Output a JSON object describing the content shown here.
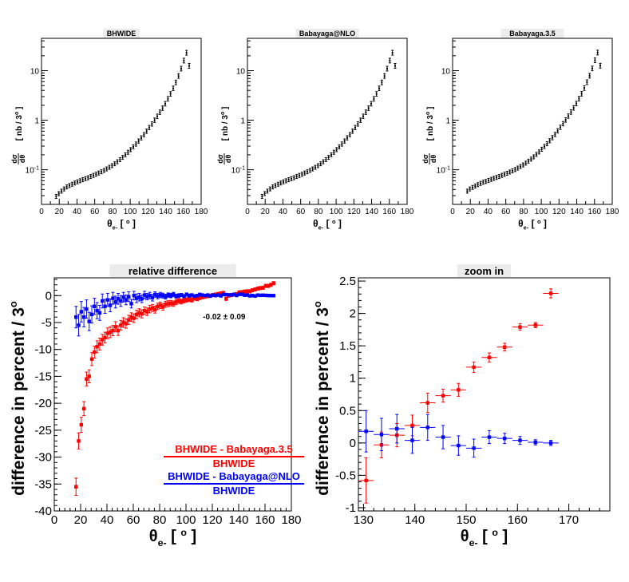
{
  "chart_data": [
    {
      "id": "bhwide",
      "type": "scatter",
      "title": "BHWIDE",
      "xlabel": "θe- [ o ]",
      "ylabel": "dσ/dθ [ nb / 3o ]",
      "yscale": "log",
      "xlim": [
        0,
        180
      ],
      "ylim": [
        0.02,
        45
      ],
      "xticks": [
        "0",
        "20",
        "40",
        "60",
        "80",
        "100",
        "120",
        "140",
        "160",
        "180"
      ],
      "yticks": [
        "10-1",
        "1",
        "10"
      ],
      "x": [
        16.5,
        19.5,
        22.5,
        25.5,
        28.5,
        31.5,
        34.5,
        37.5,
        40.5,
        43.5,
        46.5,
        49.5,
        52.5,
        55.5,
        58.5,
        61.5,
        64.5,
        67.5,
        70.5,
        73.5,
        76.5,
        79.5,
        82.5,
        85.5,
        88.5,
        91.5,
        94.5,
        97.5,
        100.5,
        103.5,
        106.5,
        109.5,
        112.5,
        115.5,
        118.5,
        121.5,
        124.5,
        127.5,
        130.5,
        133.5,
        136.5,
        139.5,
        142.5,
        145.5,
        148.5,
        151.5,
        154.5,
        157.5,
        160.5,
        163.5,
        166.5
      ],
      "y": [
        0.029,
        0.033,
        0.037,
        0.041,
        0.045,
        0.048,
        0.051,
        0.054,
        0.057,
        0.06,
        0.063,
        0.066,
        0.069,
        0.073,
        0.077,
        0.081,
        0.086,
        0.091,
        0.097,
        0.104,
        0.112,
        0.121,
        0.132,
        0.145,
        0.16,
        0.178,
        0.2,
        0.225,
        0.255,
        0.29,
        0.33,
        0.38,
        0.44,
        0.51,
        0.6,
        0.71,
        0.84,
        1.0,
        1.2,
        1.45,
        1.75,
        2.15,
        2.7,
        3.4,
        4.4,
        5.8,
        7.8,
        11,
        16,
        23,
        12.5
      ]
    },
    {
      "id": "nlo",
      "type": "scatter",
      "title": "Babayaga@NLO",
      "xlabel": "θe- [ o ]",
      "ylabel": "dσ/dθ [ nb / 3o ]",
      "yscale": "log",
      "xlim": [
        0,
        180
      ],
      "ylim": [
        0.02,
        45
      ],
      "xticks": [
        "0",
        "20",
        "40",
        "60",
        "80",
        "100",
        "120",
        "140",
        "160",
        "180"
      ],
      "yticks": [
        "10-1",
        "1",
        "10"
      ],
      "x": [
        16.5,
        19.5,
        22.5,
        25.5,
        28.5,
        31.5,
        34.5,
        37.5,
        40.5,
        43.5,
        46.5,
        49.5,
        52.5,
        55.5,
        58.5,
        61.5,
        64.5,
        67.5,
        70.5,
        73.5,
        76.5,
        79.5,
        82.5,
        85.5,
        88.5,
        91.5,
        94.5,
        97.5,
        100.5,
        103.5,
        106.5,
        109.5,
        112.5,
        115.5,
        118.5,
        121.5,
        124.5,
        127.5,
        130.5,
        133.5,
        136.5,
        139.5,
        142.5,
        145.5,
        148.5,
        151.5,
        154.5,
        157.5,
        160.5,
        163.5,
        166.5
      ],
      "y": [
        0.029,
        0.033,
        0.037,
        0.041,
        0.045,
        0.048,
        0.051,
        0.054,
        0.057,
        0.06,
        0.063,
        0.066,
        0.069,
        0.073,
        0.077,
        0.081,
        0.086,
        0.091,
        0.097,
        0.104,
        0.112,
        0.121,
        0.132,
        0.145,
        0.16,
        0.178,
        0.2,
        0.225,
        0.255,
        0.29,
        0.33,
        0.38,
        0.44,
        0.51,
        0.6,
        0.71,
        0.84,
        1.0,
        1.2,
        1.45,
        1.75,
        2.15,
        2.7,
        3.4,
        4.4,
        5.8,
        7.8,
        11,
        16,
        23,
        12.5
      ]
    },
    {
      "id": "b35",
      "type": "scatter",
      "title": "Babayaga.3.5",
      "xlabel": "θe- [ o ]",
      "ylabel": "dσ/dθ [ nb / 3o ]",
      "yscale": "log",
      "xlim": [
        0,
        180
      ],
      "ylim": [
        0.02,
        45
      ],
      "xticks": [
        "0",
        "20",
        "40",
        "60",
        "80",
        "100",
        "120",
        "140",
        "160",
        "180"
      ],
      "yticks": [
        "10-1",
        "1",
        "10"
      ],
      "x": [
        16.5,
        19.5,
        22.5,
        25.5,
        28.5,
        31.5,
        34.5,
        37.5,
        40.5,
        43.5,
        46.5,
        49.5,
        52.5,
        55.5,
        58.5,
        61.5,
        64.5,
        67.5,
        70.5,
        73.5,
        76.5,
        79.5,
        82.5,
        85.5,
        88.5,
        91.5,
        94.5,
        97.5,
        100.5,
        103.5,
        106.5,
        109.5,
        112.5,
        115.5,
        118.5,
        121.5,
        124.5,
        127.5,
        130.5,
        133.5,
        136.5,
        139.5,
        142.5,
        145.5,
        148.5,
        151.5,
        154.5,
        157.5,
        160.5,
        163.5,
        166.5
      ],
      "y": [
        0.037,
        0.041,
        0.044,
        0.047,
        0.05,
        0.053,
        0.056,
        0.058,
        0.061,
        0.064,
        0.067,
        0.07,
        0.073,
        0.077,
        0.081,
        0.085,
        0.09,
        0.095,
        0.101,
        0.108,
        0.116,
        0.125,
        0.136,
        0.149,
        0.164,
        0.182,
        0.204,
        0.229,
        0.26,
        0.295,
        0.335,
        0.385,
        0.445,
        0.515,
        0.61,
        0.72,
        0.85,
        1.01,
        1.21,
        1.46,
        1.77,
        2.17,
        2.72,
        3.42,
        4.45,
        5.85,
        7.9,
        11.1,
        16.2,
        23.2,
        12.6
      ]
    },
    {
      "id": "reldiff",
      "type": "scatter",
      "title": "relative difference",
      "xlabel": "θe- [ o ]",
      "ylabel": "difference in percent / 3o",
      "xlim": [
        0,
        180
      ],
      "ylim": [
        -40,
        3.3
      ],
      "xticks": [
        "0",
        "20",
        "40",
        "60",
        "80",
        "100",
        "120",
        "140",
        "160",
        "180"
      ],
      "yticks": [
        "-40",
        "-35",
        "-30",
        "-25",
        "-20",
        "-15",
        "-10",
        "-5",
        "0"
      ],
      "annotation": "-0.02 ± 0.09",
      "legend": {
        "position": "bottom-right",
        "entries": [
          {
            "numerator": "BHWIDE - Babayaga.3.5",
            "denominator": "BHWIDE",
            "color": "#ff0000"
          },
          {
            "numerator": "BHWIDE - Babayaga@NLO",
            "denominator": "BHWIDE",
            "color": "#0000ff"
          }
        ]
      },
      "series": [
        {
          "name": "BHWIDE - Babayaga.3.5",
          "color": "#ff0000",
          "x": [
            16.5,
            18.5,
            20.5,
            22.5,
            24.5,
            26.5,
            28.5,
            30.5,
            32.5,
            34.5,
            36.5,
            38.5,
            40.5,
            42.5,
            44.5,
            46.5,
            48.5,
            50.5,
            52.5,
            54.5,
            56.5,
            58.5,
            60.5,
            62.5,
            64.5,
            66.5,
            68.5,
            70.5,
            72.5,
            74.5,
            76.5,
            78.5,
            80.5,
            82.5,
            84.5,
            86.5,
            88.5,
            90.5,
            92.5,
            94.5,
            96.5,
            98.5,
            100.5,
            102.5,
            104.5,
            106.5,
            108.5,
            110.5,
            112.5,
            114.5,
            116.5,
            118.5,
            120.5,
            122.5,
            124.5,
            126.5,
            128.5,
            130.5,
            132.5,
            134.5,
            136.5,
            138.5,
            140.5,
            142.5,
            144.5,
            146.5,
            148.5,
            150.5,
            152.5,
            154.5,
            156.5,
            158.5,
            160.5,
            162.5,
            164.5,
            166.5
          ],
          "y": [
            -35.5,
            -27,
            -24,
            -21,
            -15.5,
            -15,
            -11.8,
            -10.5,
            -9.5,
            -9,
            -8.2,
            -7.8,
            -7,
            -6.8,
            -6.5,
            -5.8,
            -6.5,
            -5.5,
            -5,
            -5.2,
            -4.5,
            -4,
            -4.2,
            -3.5,
            -3.2,
            -3.4,
            -2.8,
            -3,
            -2.5,
            -2.3,
            -2.6,
            -2,
            -1.8,
            -2.1,
            -1.6,
            -1.5,
            -1.4,
            -1.5,
            -1.2,
            -1,
            -1.1,
            -0.9,
            -0.8,
            -0.7,
            -0.8,
            -0.5,
            -0.6,
            -0.4,
            -0.3,
            -0.2,
            -0.1,
            0,
            0.1,
            0.2,
            0.3,
            0.4,
            0.5,
            -0.6,
            0,
            0.1,
            0.2,
            0.3,
            0.6,
            0.65,
            0.75,
            0.8,
            0.8,
            1.0,
            1.15,
            1.3,
            1.4,
            1.45,
            1.8,
            1.8,
            2.0,
            2.3
          ],
          "err": [
            1.6,
            1.5,
            1.4,
            1.3,
            1.3,
            1.2,
            1.2,
            1.1,
            1.1,
            1.1,
            1.0,
            1.0,
            1.0,
            1.0,
            0.95,
            0.95,
            0.9,
            0.9,
            0.9,
            0.85,
            0.85,
            0.8,
            0.8,
            0.8,
            0.75,
            0.75,
            0.7,
            0.7,
            0.7,
            0.65,
            0.65,
            0.6,
            0.6,
            0.6,
            0.55,
            0.55,
            0.5,
            0.5,
            0.5,
            0.45,
            0.45,
            0.45,
            0.4,
            0.4,
            0.4,
            0.35,
            0.35,
            0.35,
            0.3,
            0.3,
            0.3,
            0.3,
            0.3,
            0.3,
            0.3,
            0.3,
            0.3,
            0.3,
            0.3,
            0.3,
            0.3,
            0.3,
            0.3,
            0.3,
            0.3,
            0.3,
            0.3,
            0.3,
            0.3,
            0.3,
            0.3,
            0.3,
            0.3,
            0.3,
            0.3,
            0.3
          ]
        },
        {
          "name": "BHWIDE - Babayaga@NLO",
          "color": "#0000ff",
          "x": [
            16.5,
            18.5,
            20.5,
            22.5,
            24.5,
            26.5,
            28.5,
            30.5,
            32.5,
            34.5,
            36.5,
            38.5,
            40.5,
            42.5,
            44.5,
            46.5,
            48.5,
            50.5,
            52.5,
            54.5,
            56.5,
            58.5,
            60.5,
            62.5,
            64.5,
            66.5,
            68.5,
            70.5,
            72.5,
            74.5,
            76.5,
            78.5,
            80.5,
            82.5,
            84.5,
            86.5,
            88.5,
            90.5,
            92.5,
            94.5,
            96.5,
            98.5,
            100.5,
            102.5,
            104.5,
            106.5,
            108.5,
            110.5,
            112.5,
            114.5,
            116.5,
            118.5,
            120.5,
            122.5,
            124.5,
            126.5,
            128.5,
            130.5,
            132.5,
            134.5,
            136.5,
            138.5,
            140.5,
            142.5,
            144.5,
            146.5,
            148.5,
            150.5,
            152.5,
            154.5,
            156.5,
            158.5,
            160.5,
            162.5,
            164.5,
            166.5
          ],
          "y": [
            -4,
            -5.5,
            -3,
            -4,
            -2.5,
            -4.8,
            -3.5,
            -2,
            -2.8,
            -3.2,
            -1,
            -2,
            -0.8,
            -1.8,
            -0.5,
            -1.2,
            -0.6,
            -1,
            -0.3,
            -0.8,
            -0.2,
            -1.5,
            0,
            -0.5,
            -0.3,
            -0.6,
            0.1,
            -0.2,
            0,
            -0.4,
            0.2,
            -0.1,
            0.1,
            0,
            -0.2,
            0.1,
            0,
            0.2,
            -0.1,
            0,
            0.1,
            -0.1,
            0.2,
            0,
            0.1,
            -0.1,
            0,
            0.2,
            0.1,
            0,
            0.1,
            -0.1,
            0.1,
            0,
            0.1,
            -0.05,
            0.2,
            0.18,
            0.13,
            0.12,
            0.22,
            0.03,
            0.24,
            0.23,
            0.08,
            0.1,
            -0.05,
            0,
            -0.08,
            0.09,
            0.05,
            0.07,
            0.04,
            0.02,
            0,
            -0.01
          ],
          "err": [
            2.0,
            2.0,
            1.9,
            1.8,
            1.7,
            1.7,
            1.6,
            1.5,
            1.5,
            1.4,
            1.3,
            1.3,
            1.2,
            1.2,
            1.1,
            1.1,
            1.0,
            1.0,
            0.9,
            0.9,
            0.9,
            0.8,
            0.8,
            0.8,
            0.7,
            0.7,
            0.7,
            0.6,
            0.6,
            0.6,
            0.5,
            0.5,
            0.5,
            0.45,
            0.45,
            0.4,
            0.4,
            0.4,
            0.35,
            0.35,
            0.3,
            0.3,
            0.3,
            0.3,
            0.25,
            0.25,
            0.25,
            0.25,
            0.2,
            0.2,
            0.2,
            0.2,
            0.2,
            0.2,
            0.2,
            0.2,
            0.2,
            0.2,
            0.2,
            0.2,
            0.2,
            0.2,
            0.2,
            0.2,
            0.2,
            0.2,
            0.2,
            0.2,
            0.2,
            0.2,
            0.2,
            0.2,
            0.2,
            0.2,
            0.2,
            0.2
          ]
        }
      ]
    },
    {
      "id": "zoom",
      "type": "scatter",
      "title": "zoom in",
      "xlabel": "θe- [ o ]",
      "ylabel": "difference in percent / 3o",
      "xlim": [
        129,
        178
      ],
      "ylim": [
        -1.05,
        2.55
      ],
      "xticks": [
        "130",
        "140",
        "150",
        "160",
        "170"
      ],
      "yticks": [
        "-1",
        "-0.5",
        "0",
        "0.5",
        "1",
        "1.5",
        "2",
        "2.5"
      ],
      "series": [
        {
          "name": "BHWIDE - Babayaga.3.5",
          "color": "#ff0000",
          "x": [
            130.5,
            133.5,
            136.5,
            139.5,
            142.5,
            145.5,
            148.5,
            151.5,
            154.5,
            157.5,
            160.5,
            163.5,
            166.5
          ],
          "y": [
            -0.58,
            -0.03,
            0.12,
            0.27,
            0.62,
            0.73,
            0.82,
            1.17,
            1.32,
            1.48,
            1.79,
            1.82,
            2.31
          ],
          "err": [
            0.35,
            0.2,
            0.18,
            0.16,
            0.15,
            0.1,
            0.1,
            0.08,
            0.07,
            0.06,
            0.05,
            0.04,
            0.07
          ]
        },
        {
          "name": "BHWIDE - Babayaga@NLO",
          "color": "#0000ff",
          "x": [
            130.5,
            133.5,
            136.5,
            139.5,
            142.5,
            145.5,
            148.5,
            151.5,
            154.5,
            157.5,
            160.5,
            163.5,
            166.5
          ],
          "y": [
            0.18,
            0.13,
            0.22,
            0.04,
            0.24,
            0.09,
            -0.04,
            -0.08,
            0.09,
            0.07,
            0.04,
            0.01,
            0
          ],
          "err": [
            0.32,
            0.25,
            0.22,
            0.2,
            0.2,
            0.18,
            0.15,
            0.14,
            0.1,
            0.08,
            0.06,
            0.04,
            0.04
          ]
        }
      ]
    }
  ]
}
